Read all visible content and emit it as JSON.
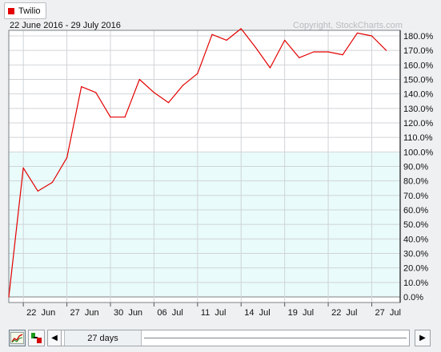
{
  "legend": {
    "label": "Twilio",
    "color": "#e30000"
  },
  "header": {
    "date_range": "22 June 2016 - 29 July 2016",
    "copyright": "Copyright, StockCharts.com"
  },
  "chart_data": {
    "type": "line",
    "series": [
      {
        "name": "Twilio",
        "color": "#e30000",
        "values": [
          0,
          89,
          73,
          79,
          96,
          145,
          141,
          124,
          124,
          150,
          141,
          134,
          146,
          154,
          181,
          177,
          185,
          172,
          158,
          177,
          165,
          169,
          169,
          167,
          182,
          180,
          170
        ]
      }
    ],
    "x_tick_labels": [
      {
        "label": "22  Jun",
        "index": 1
      },
      {
        "label": "27  Jun",
        "index": 4
      },
      {
        "label": "30  Jun",
        "index": 7
      },
      {
        "label": "06  Jul",
        "index": 10
      },
      {
        "label": "11  Jul",
        "index": 13
      },
      {
        "label": "14  Jul",
        "index": 16
      },
      {
        "label": "19  Jul",
        "index": 19
      },
      {
        "label": "22  Jul",
        "index": 22
      },
      {
        "label": "27  Jul",
        "index": 25
      }
    ],
    "y_tick_labels": [
      "0.0%",
      "10.0%",
      "20.0%",
      "30.0%",
      "40.0%",
      "50.0%",
      "60.0%",
      "70.0%",
      "80.0%",
      "90.0%",
      "100.0%",
      "110.0%",
      "120.0%",
      "130.0%",
      "140.0%",
      "150.0%",
      "160.0%",
      "170.0%",
      "180.0%"
    ],
    "ylim": [
      0,
      180
    ],
    "grid": true,
    "zero_line_color": "#808080",
    "positive_fill_color": "#e9fbfb"
  },
  "controls": {
    "period_label": "27 days"
  }
}
